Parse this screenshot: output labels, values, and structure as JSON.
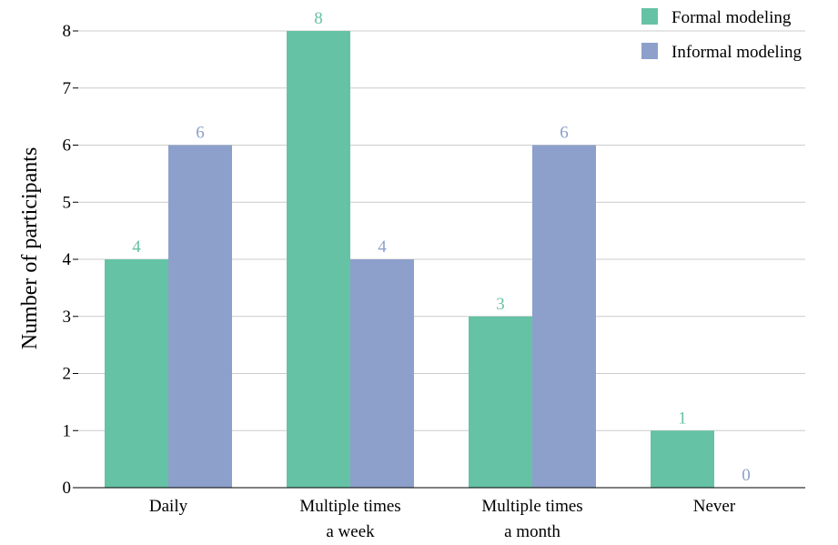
{
  "chart_data": {
    "type": "bar",
    "title": "",
    "xlabel": "",
    "ylabel": "Number of participants",
    "ylim": [
      0,
      8
    ],
    "yticks": [
      "0",
      "1",
      "2",
      "3",
      "4",
      "5",
      "6",
      "7",
      "8"
    ],
    "grid": true,
    "legend_position": "top-right",
    "categories": [
      [
        "Daily"
      ],
      [
        "Multiple times",
        "a week"
      ],
      [
        "Multiple times",
        "a month"
      ],
      [
        "Never"
      ]
    ],
    "series": [
      {
        "name": "Formal modeling",
        "color": "#66c2a5",
        "values": [
          4,
          8,
          3,
          1
        ]
      },
      {
        "name": "Informal modeling",
        "color": "#8da0cb",
        "values": [
          6,
          4,
          6,
          0
        ]
      }
    ]
  }
}
